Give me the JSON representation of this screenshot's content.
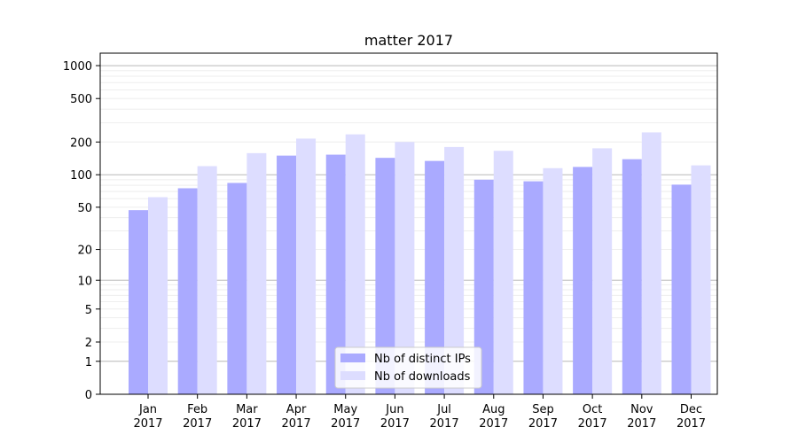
{
  "chart_data": {
    "type": "bar",
    "title": "matter 2017",
    "xlabel": "",
    "ylabel": "",
    "y_scale": "log-like (symlog)",
    "ylim": [
      0,
      1300
    ],
    "y_ticks": [
      0,
      1,
      2,
      5,
      10,
      20,
      50,
      100,
      200,
      500,
      1000
    ],
    "grid": true,
    "legend_position": "bottom-center",
    "categories": [
      "Jan\n2017",
      "Feb\n2017",
      "Mar\n2017",
      "Apr\n2017",
      "May\n2017",
      "Jun\n2017",
      "Jul\n2017",
      "Aug\n2017",
      "Sep\n2017",
      "Oct\n2017",
      "Nov\n2017",
      "Dec\n2017"
    ],
    "category_lines": [
      [
        "Jan",
        "2017"
      ],
      [
        "Feb",
        "2017"
      ],
      [
        "Mar",
        "2017"
      ],
      [
        "Apr",
        "2017"
      ],
      [
        "May",
        "2017"
      ],
      [
        "Jun",
        "2017"
      ],
      [
        "Jul",
        "2017"
      ],
      [
        "Aug",
        "2017"
      ],
      [
        "Sep",
        "2017"
      ],
      [
        "Oct",
        "2017"
      ],
      [
        "Nov",
        "2017"
      ],
      [
        "Dec",
        "2017"
      ]
    ],
    "series": [
      {
        "name": "Nb of distinct IPs",
        "color": "#aaaaff",
        "values": [
          47,
          75,
          84,
          150,
          153,
          143,
          134,
          90,
          87,
          118,
          139,
          81
        ]
      },
      {
        "name": "Nb of downloads",
        "color": "#ddddff",
        "values": [
          62,
          120,
          158,
          215,
          235,
          200,
          180,
          166,
          115,
          175,
          245,
          122
        ]
      }
    ]
  }
}
